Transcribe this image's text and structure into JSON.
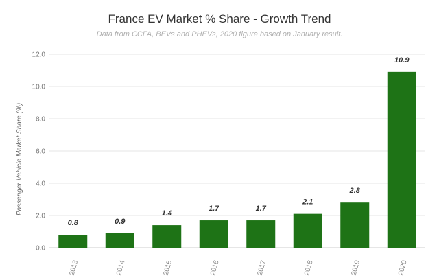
{
  "chart_data": {
    "type": "bar",
    "title": "France EV Market % Share - Growth Trend",
    "subtitle": "Data from CCFA, BEVs and PHEVs, 2020 figure based on January result.",
    "xlabel": "",
    "ylabel": "Passenger Vehicle Market Share (%)",
    "categories": [
      "2013",
      "2014",
      "2015",
      "2016",
      "2017",
      "2018",
      "2019",
      "2020"
    ],
    "values": [
      0.8,
      0.9,
      1.4,
      1.7,
      1.7,
      2.1,
      2.8,
      10.9
    ],
    "data_labels": [
      "0.8",
      "0.9",
      "1.4",
      "1.7",
      "1.7",
      "2.1",
      "2.8",
      "10.9"
    ],
    "y_ticks": [
      "0.0",
      "2.0",
      "4.0",
      "6.0",
      "8.0",
      "10.0",
      "12.0"
    ],
    "ylim": [
      0,
      12
    ],
    "grid": true,
    "bar_color": "#1e7316",
    "grid_color": "#e6e6e6"
  }
}
